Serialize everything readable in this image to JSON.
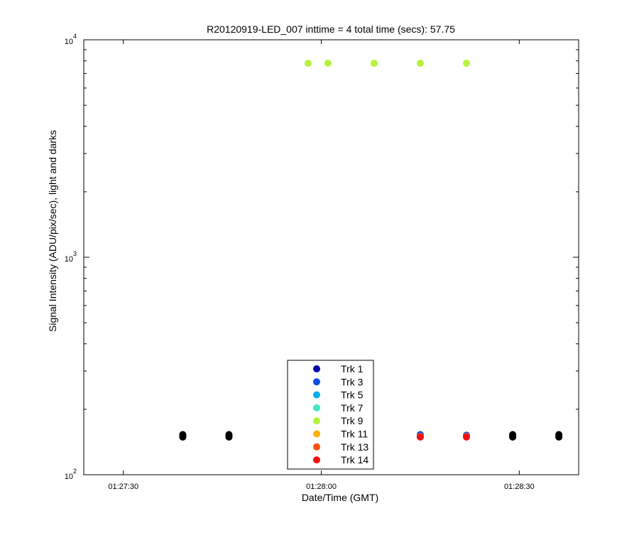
{
  "chart_data": {
    "type": "scatter",
    "title": "R20120919-LED_007 inttime = 4 total time (secs): 57.75",
    "xlabel": "Date/Time (GMT)",
    "ylabel": "Signal Intensity (ADU/pix/sec), light and darks",
    "y_scale": "log",
    "ylim": [
      100,
      10000
    ],
    "y_ticks": [
      {
        "value": 100,
        "base": "10",
        "exp": "2"
      },
      {
        "value": 1000,
        "base": "10",
        "exp": "3"
      },
      {
        "value": 10000,
        "base": "10",
        "exp": "4"
      }
    ],
    "xlim": [
      "01:27:24",
      "01:28:39"
    ],
    "x_ticks": [
      "01:27:30",
      "01:28:00",
      "01:28:30"
    ],
    "legend_position": "bottom-center",
    "grid": false,
    "series": [
      {
        "name": "Trk 1",
        "color": "#0000aa",
        "points": [
          [
            "01:27:58",
            150
          ],
          [
            "01:28:15",
            150
          ],
          [
            "01:28:22",
            150
          ]
        ]
      },
      {
        "name": "Trk 3",
        "color": "#0a4ee6",
        "points": [
          [
            "01:27:58",
            152
          ],
          [
            "01:28:15",
            153
          ],
          [
            "01:28:22",
            152
          ]
        ]
      },
      {
        "name": "Trk 5",
        "color": "#00b0e8",
        "points": [
          [
            "01:27:58",
            150
          ],
          [
            "01:28:15",
            150
          ],
          [
            "01:28:22",
            150
          ]
        ]
      },
      {
        "name": "Trk 7",
        "color": "#40e8c0",
        "points": [
          [
            "01:27:58",
            150
          ],
          [
            "01:28:15",
            150
          ],
          [
            "01:28:22",
            150
          ]
        ]
      },
      {
        "name": "Trk 9",
        "color": "#b6f23c",
        "points": [
          [
            "01:27:58",
            7800
          ],
          [
            "01:28:01",
            7800
          ],
          [
            "01:28:08",
            7800
          ],
          [
            "01:28:15",
            7800
          ],
          [
            "01:28:22",
            7800
          ]
        ]
      },
      {
        "name": "Trk 11",
        "color": "#ffb000",
        "points": [
          [
            "01:27:58",
            150
          ],
          [
            "01:28:15",
            150
          ],
          [
            "01:28:22",
            150
          ]
        ]
      },
      {
        "name": "Trk 13",
        "color": "#ff5010",
        "points": [
          [
            "01:27:58",
            150
          ],
          [
            "01:28:15",
            150
          ],
          [
            "01:28:22",
            150
          ]
        ]
      },
      {
        "name": "Trk 14",
        "color": "#ee1111",
        "points": [
          [
            "01:27:58",
            149
          ],
          [
            "01:28:15",
            149
          ],
          [
            "01:28:22",
            149
          ]
        ]
      }
    ],
    "darks": {
      "color": "#000000",
      "points": [
        [
          "01:27:39",
          149
        ],
        [
          "01:27:39",
          151
        ],
        [
          "01:27:39",
          153
        ],
        [
          "01:27:46",
          149
        ],
        [
          "01:27:46",
          151
        ],
        [
          "01:27:46",
          153
        ],
        [
          "01:28:29",
          149
        ],
        [
          "01:28:29",
          151
        ],
        [
          "01:28:29",
          153
        ],
        [
          "01:28:36",
          149
        ],
        [
          "01:28:36",
          151
        ],
        [
          "01:28:36",
          153
        ]
      ]
    }
  }
}
